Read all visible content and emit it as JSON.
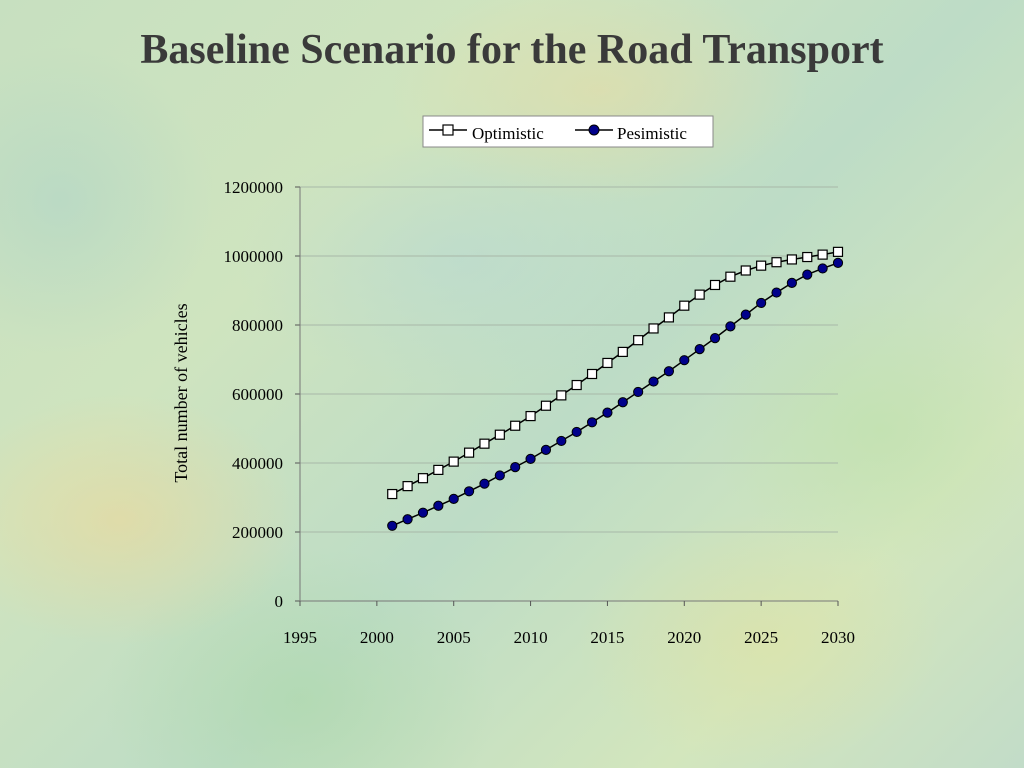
{
  "chart_data": {
    "type": "line",
    "title": "Baseline Scenario for the Road Transport",
    "ylabel": "Total number of vehicles",
    "xlabel": "",
    "xlim": [
      1995,
      2030
    ],
    "ylim": [
      0,
      1200000
    ],
    "x_ticks": [
      "1995",
      "2000",
      "2005",
      "2010",
      "2015",
      "2020",
      "2025",
      "2030"
    ],
    "y_ticks": [
      "0",
      "200000",
      "400000",
      "600000",
      "800000",
      "1000000",
      "1200000"
    ],
    "grid": true,
    "legend": "top",
    "x": [
      2001,
      2002,
      2003,
      2004,
      2005,
      2006,
      2007,
      2008,
      2009,
      2010,
      2011,
      2012,
      2013,
      2014,
      2015,
      2016,
      2017,
      2018,
      2019,
      2020,
      2021,
      2022,
      2023,
      2024,
      2025,
      2026,
      2027,
      2028,
      2029,
      2030
    ],
    "series": [
      {
        "name": "Optimistic",
        "marker": "open-square",
        "color": "#000000",
        "values": [
          310000,
          333000,
          356000,
          380000,
          404000,
          430000,
          456000,
          482000,
          508000,
          536000,
          566000,
          596000,
          626000,
          658000,
          690000,
          722000,
          756000,
          790000,
          822000,
          856000,
          888000,
          916000,
          940000,
          958000,
          972000,
          982000,
          990000,
          997000,
          1004000,
          1012000
        ]
      },
      {
        "name": "Pesimistic",
        "marker": "filled-circle",
        "color": "#00008b",
        "values": [
          218000,
          237000,
          256000,
          276000,
          296000,
          318000,
          340000,
          364000,
          388000,
          412000,
          438000,
          464000,
          490000,
          518000,
          546000,
          576000,
          606000,
          636000,
          666000,
          698000,
          730000,
          762000,
          796000,
          830000,
          864000,
          894000,
          922000,
          946000,
          964000,
          980000
        ]
      }
    ]
  }
}
